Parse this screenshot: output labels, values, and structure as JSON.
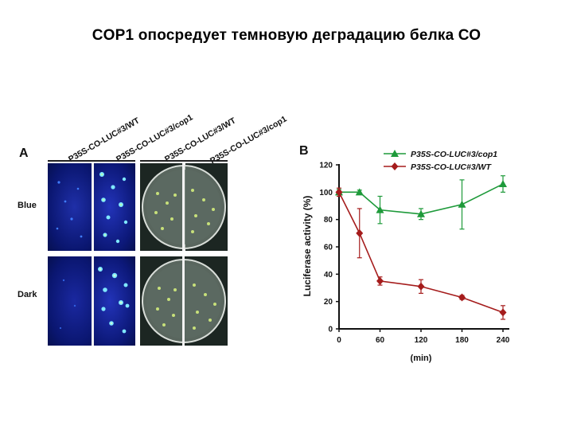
{
  "slide": {
    "title": "COP1 опосредует темновую деградацию белка СО"
  },
  "panel_a": {
    "letter": "A",
    "column_labels": [
      "P35S-CO-LUC#3/WT",
      "P35S-CO-LUC#3/cop1",
      "P35S-CO-LUC#3/WT",
      "P35S-CO-LUC#3/cop1"
    ],
    "row_labels": [
      "Blue",
      "Dark"
    ]
  },
  "chart_data": {
    "type": "line",
    "panel_letter": "B",
    "title": "",
    "xlabel": "(min)",
    "ylabel": "Luciferase activity (%)",
    "xlim": [
      0,
      240
    ],
    "ylim": [
      0,
      120
    ],
    "x_ticks": [
      0,
      60,
      120,
      180,
      240
    ],
    "y_ticks": [
      0,
      20,
      40,
      60,
      80,
      100,
      120
    ],
    "legend_position": "top-right",
    "series": [
      {
        "name": "P35S-CO-LUC#3/cop1",
        "color": "#1e9a3a",
        "marker": "triangle",
        "x": [
          0,
          30,
          60,
          120,
          180,
          240
        ],
        "y": [
          100,
          100,
          87,
          84,
          91,
          106
        ],
        "err": [
          2,
          1.5,
          10,
          4,
          18,
          6
        ]
      },
      {
        "name": "P35S-CO-LUC#3/WT",
        "color": "#a51c1c",
        "marker": "diamond",
        "x": [
          0,
          30,
          60,
          120,
          180,
          240
        ],
        "y": [
          100,
          70,
          35,
          31,
          23,
          12
        ],
        "err": [
          3,
          18,
          3,
          5,
          1.5,
          5
        ]
      }
    ]
  }
}
